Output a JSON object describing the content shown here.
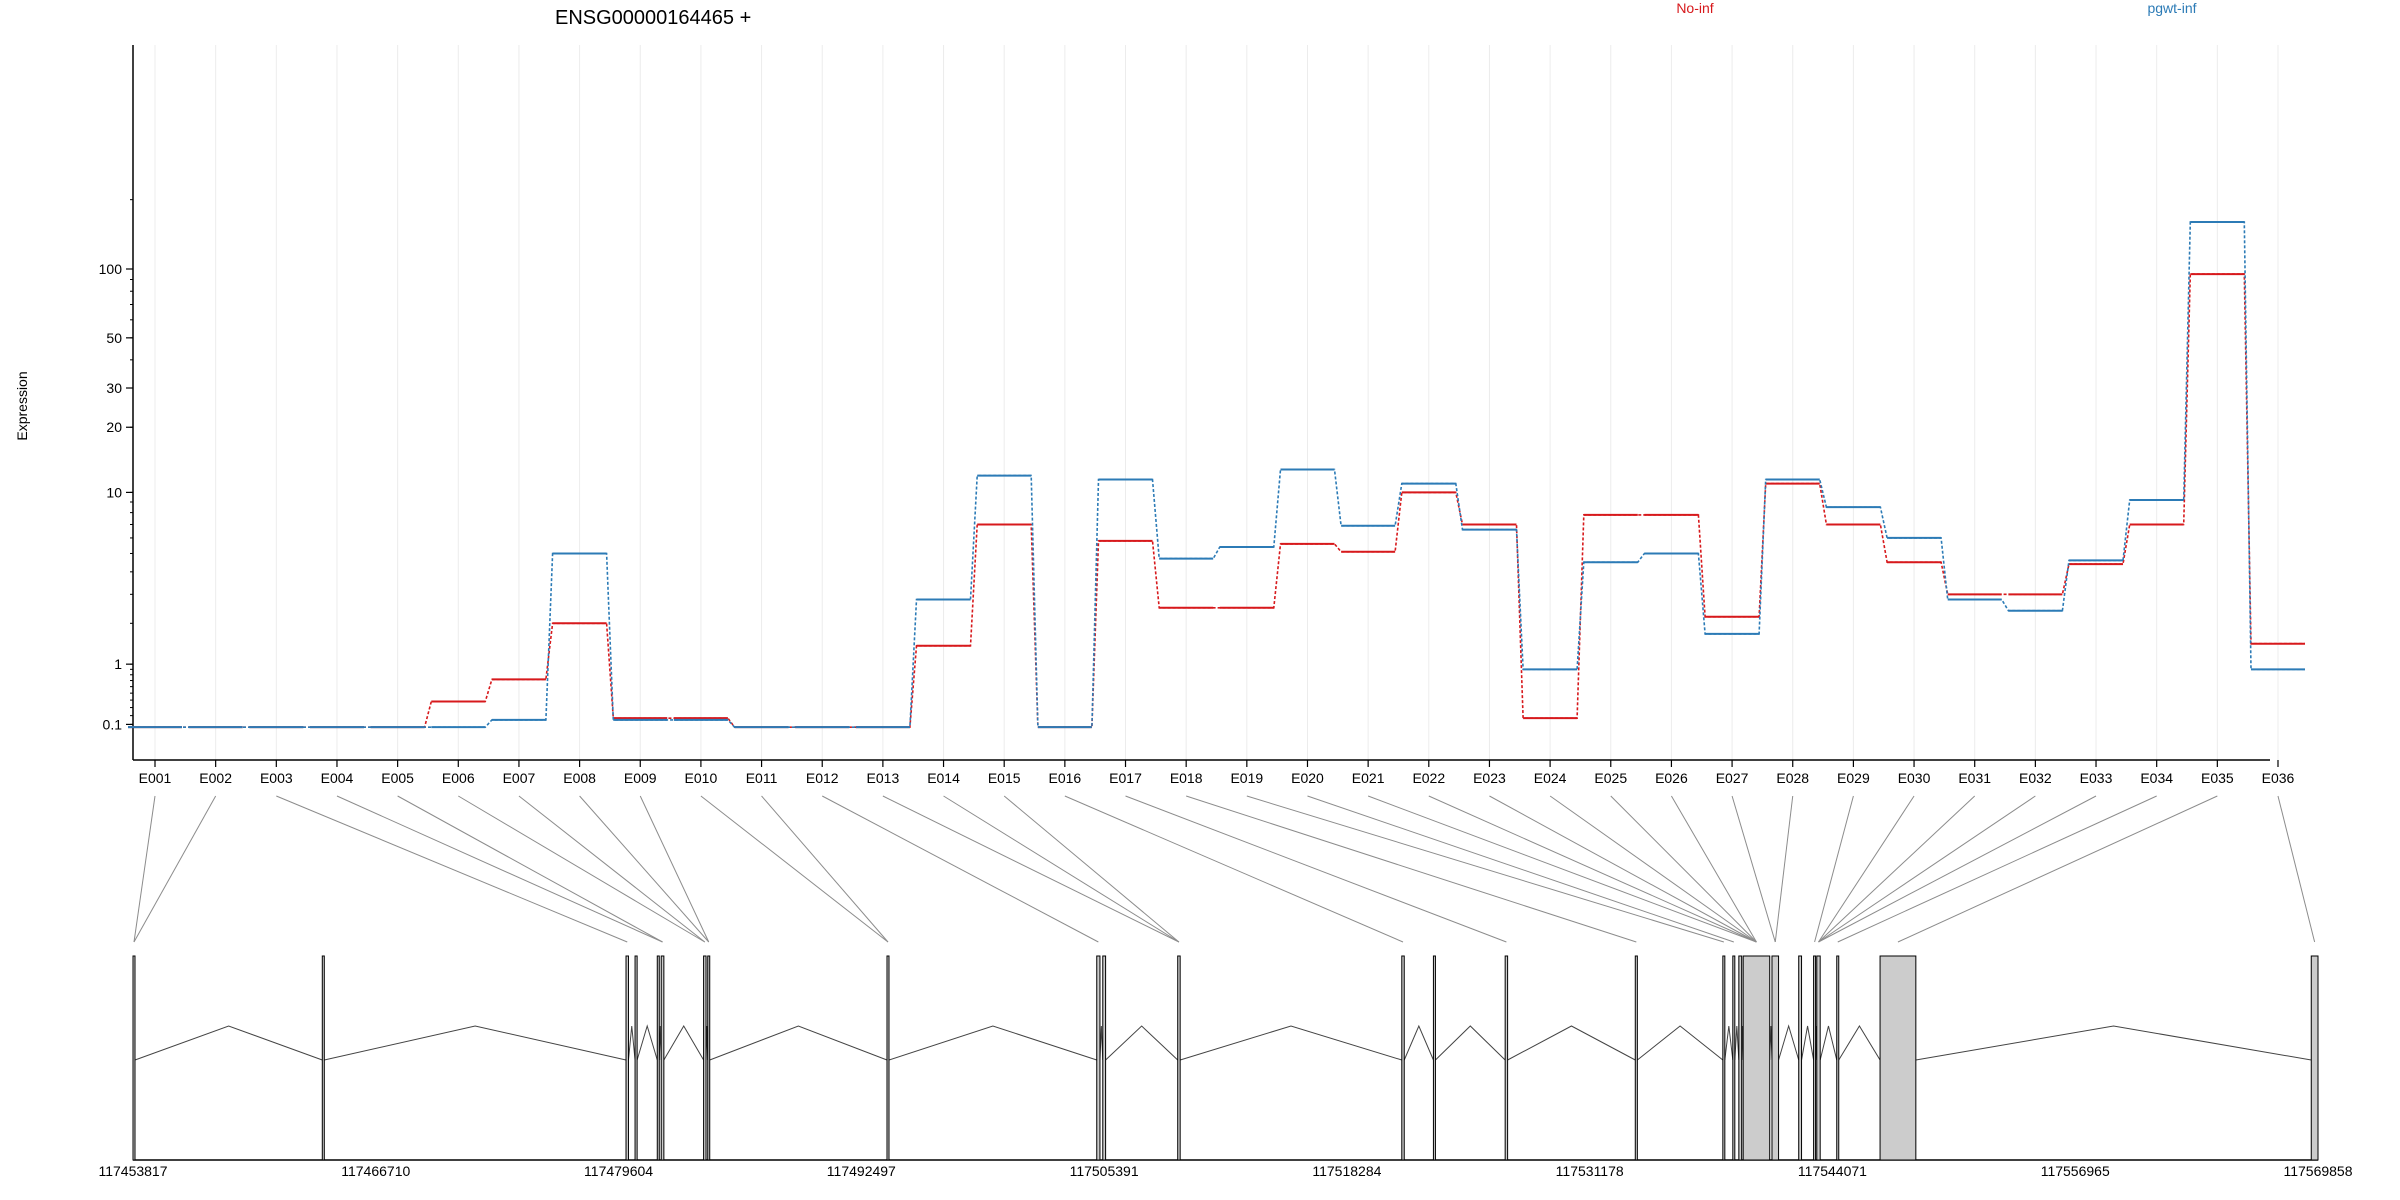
{
  "chart_data": {
    "type": "line",
    "scale": "log",
    "title": "ENSG00000164465 +",
    "ylabel": "Expression",
    "yticks": [
      "0.1",
      "1",
      "10",
      "20",
      "30",
      "50",
      "100"
    ],
    "categories": [
      "E001",
      "E002",
      "E003",
      "E004",
      "E005",
      "E006",
      "E007",
      "E008",
      "E009",
      "E010",
      "E011",
      "E012",
      "E013",
      "E014",
      "E015",
      "E016",
      "E017",
      "E018",
      "E019",
      "E020",
      "E021",
      "E022",
      "E023",
      "E024",
      "E025",
      "E026",
      "E027",
      "E028",
      "E029",
      "E030",
      "E031",
      "E032",
      "E033",
      "E034",
      "E035",
      "E036"
    ],
    "series": [
      {
        "name": "No-inf",
        "color": "#d7191c",
        "values": [
          0,
          0,
          0,
          0,
          0,
          0.38,
          0.72,
          2.0,
          0.17,
          0.17,
          0,
          0,
          0,
          1.4,
          7.0,
          0,
          5.8,
          2.5,
          2.5,
          5.6,
          5.1,
          10.0,
          7.0,
          0.17,
          7.8,
          7.8,
          2.2,
          11.0,
          7.0,
          4.5,
          3.0,
          3.0,
          4.4,
          7.0,
          95.0,
          1.45
        ]
      },
      {
        "name": "pgwt-inf",
        "color": "#2c7bb6",
        "values": [
          0,
          0,
          0,
          0,
          0,
          0,
          0.15,
          5.0,
          0.15,
          0.15,
          0,
          0,
          0,
          2.8,
          12.0,
          0,
          11.5,
          4.7,
          5.4,
          12.8,
          6.9,
          11.0,
          6.6,
          0.9,
          4.5,
          5.0,
          1.7,
          11.5,
          8.5,
          6.0,
          2.8,
          2.4,
          4.6,
          9.2,
          160.0,
          0.9
        ]
      }
    ],
    "gene_model": {
      "coordinate_labels": [
        "117453817",
        "117466710",
        "117479604",
        "117492497",
        "117505391",
        "117518284",
        "117531178",
        "117544071",
        "117556965",
        "117569858"
      ],
      "genome_range": [
        117453817,
        117569858
      ],
      "exons": [
        {
          "start": 117453817,
          "end": 117453897
        },
        {
          "start": 117463870,
          "end": 117463960
        },
        {
          "start": 117480000,
          "end": 117480130
        },
        {
          "start": 117480480,
          "end": 117480590
        },
        {
          "start": 117481660,
          "end": 117481740
        },
        {
          "start": 117481870,
          "end": 117482010
        },
        {
          "start": 117484120,
          "end": 117484250
        },
        {
          "start": 117484340,
          "end": 117484440
        },
        {
          "start": 117493860,
          "end": 117493960
        },
        {
          "start": 117505000,
          "end": 117505170
        },
        {
          "start": 117505320,
          "end": 117505470
        },
        {
          "start": 117509300,
          "end": 117509430
        },
        {
          "start": 117521200,
          "end": 117521330
        },
        {
          "start": 117522880,
          "end": 117522980
        },
        {
          "start": 117526690,
          "end": 117526820
        },
        {
          "start": 117533600,
          "end": 117533710
        },
        {
          "start": 117538250,
          "end": 117538330
        },
        {
          "start": 117538780,
          "end": 117538860
        },
        {
          "start": 117539100,
          "end": 117539250
        },
        {
          "start": 117539330,
          "end": 117540740
        },
        {
          "start": 117540860,
          "end": 117541210
        },
        {
          "start": 117542280,
          "end": 117542430
        },
        {
          "start": 117543070,
          "end": 117543150
        },
        {
          "start": 117543240,
          "end": 117543420
        },
        {
          "start": 117544300,
          "end": 117544400
        },
        {
          "start": 117546600,
          "end": 117548500
        },
        {
          "start": 117569500,
          "end": 117569858
        }
      ]
    }
  }
}
